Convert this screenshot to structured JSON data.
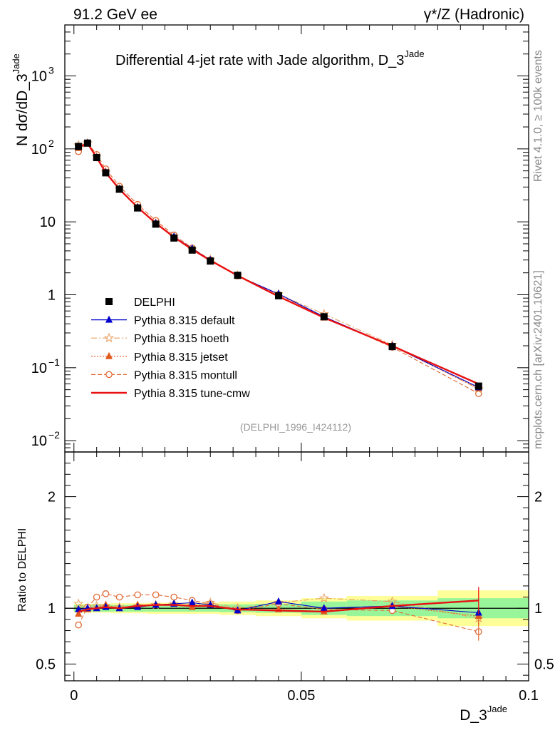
{
  "header": {
    "left": "91.2 GeV ee",
    "right": "γ*/Z (Hadronic)"
  },
  "side_labels": {
    "rivet": "Rivet 4.1.0, ≥ 100k events",
    "mcplots": "mcplots.cern.ch [arXiv:2401.10621]"
  },
  "chart_data": {
    "type": "line",
    "title": "Differential 4-jet rate with Jade algorithm, D_3",
    "title_sup": "Jade",
    "xlabel": "D_3",
    "xlabel_sup": "Jade",
    "ylabel": "N  dσ/dD_3",
    "ylabel_sup": "Jade",
    "ratio_ylabel": "Ratio to DELPHI",
    "watermark": "(DELPHI_1996_I424112)",
    "xlim": [
      -0.002,
      0.1
    ],
    "ylim": [
      0.007,
      5000
    ],
    "ratio_ylim": [
      0.35,
      2.4
    ],
    "log_y": true,
    "x_ticks": [
      {
        "v": 0,
        "label": "0"
      },
      {
        "v": 0.05,
        "label": "0.05"
      },
      {
        "v": 0.1,
        "label": "0.1"
      }
    ],
    "y_ticks": [
      {
        "v": 0.01,
        "label": "10",
        "sup": "−2"
      },
      {
        "v": 0.1,
        "label": "10",
        "sup": "−1"
      },
      {
        "v": 1,
        "label": "1",
        "sup": ""
      },
      {
        "v": 10,
        "label": "10",
        "sup": ""
      },
      {
        "v": 100,
        "label": "10",
        "sup": "2"
      },
      {
        "v": 1000,
        "label": "10",
        "sup": "3"
      }
    ],
    "ratio_ticks": [
      {
        "v": 0.5,
        "label": "0.5"
      },
      {
        "v": 1,
        "label": "1"
      },
      {
        "v": 2,
        "label": "2"
      }
    ],
    "bin_edges": [
      0,
      0.002,
      0.004,
      0.006,
      0.008,
      0.012,
      0.016,
      0.02,
      0.024,
      0.028,
      0.032,
      0.04,
      0.05,
      0.06,
      0.08,
      0.1
    ],
    "x": [
      0.001,
      0.003,
      0.005,
      0.007,
      0.01,
      0.014,
      0.018,
      0.022,
      0.026,
      0.03,
      0.036,
      0.045,
      0.055,
      0.07,
      0.089
    ],
    "data_values": [
      108,
      120,
      76,
      47,
      28,
      15.5,
      9.3,
      6.0,
      4.1,
      2.9,
      1.85,
      0.97,
      0.5,
      0.195,
      0.056
    ],
    "band_inner": [
      0.03,
      0.03,
      0.03,
      0.03,
      0.03,
      0.03,
      0.03,
      0.03,
      0.03,
      0.03,
      0.035,
      0.04,
      0.06,
      0.07,
      0.09
    ],
    "band_outer": [
      0.04,
      0.04,
      0.04,
      0.04,
      0.045,
      0.045,
      0.05,
      0.05,
      0.05,
      0.05,
      0.06,
      0.07,
      0.09,
      0.11,
      0.16
    ],
    "series": [
      {
        "name": "DELPHI",
        "style": "data",
        "color": "#000000"
      },
      {
        "name": "Pythia 8.315 default",
        "color": "#0000cc",
        "marker": "triangle",
        "dash": "",
        "ratios": [
          0.99,
          1.0,
          1.0,
          1.01,
          1.0,
          1.01,
          1.03,
          1.04,
          1.05,
          1.03,
          0.98,
          1.06,
          1.0,
          1.02,
          0.96
        ]
      },
      {
        "name": "Pythia 8.315 hoeth",
        "color": "#e8a060",
        "marker": "star",
        "dash": "8,3,2,3",
        "ratios": [
          1.04,
          1.0,
          1.02,
          1.02,
          1.01,
          1.02,
          1.03,
          1.04,
          1.02,
          1.05,
          1.0,
          1.05,
          1.09,
          1.06,
          0.91
        ]
      },
      {
        "name": "Pythia 8.315 jetset",
        "color": "#e05a1e",
        "marker": "triangle",
        "dash": "2,2",
        "ratios": [
          0.95,
          0.99,
          1.0,
          1.03,
          1.0,
          1.03,
          1.03,
          1.04,
          1.01,
          1.03,
          0.98,
          0.99,
          0.97,
          1.02,
          0.93
        ]
      },
      {
        "name": "Pythia 8.315 montull",
        "color": "#e06a35",
        "marker": "circle",
        "dash": "6,3",
        "ratios": [
          0.85,
          1.01,
          1.1,
          1.13,
          1.1,
          1.12,
          1.12,
          1.1,
          1.07,
          1.04,
          0.98,
          1.04,
          0.99,
          0.98,
          0.79
        ]
      },
      {
        "name": "Pythia 8.315 tune-cmw",
        "color": "#e81010",
        "marker": "none",
        "dash": "",
        "ratios": [
          0.97,
          0.99,
          1.0,
          1.01,
          1.0,
          1.02,
          1.03,
          1.03,
          1.02,
          1.02,
          0.99,
          0.98,
          0.97,
          1.02,
          1.07
        ]
      }
    ]
  }
}
